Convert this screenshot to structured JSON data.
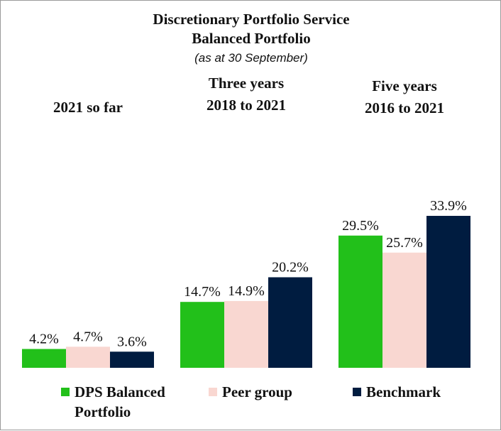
{
  "chart_data": {
    "type": "bar",
    "title": "Discretionary Portfolio Service",
    "subtitle": "Balanced Portfolio",
    "note": "(as at 30 September)",
    "groups": [
      {
        "label_line1": "2021 so far",
        "label_line2": ""
      },
      {
        "label_line1": "Three years",
        "label_line2": "2018 to 2021"
      },
      {
        "label_line1": "Five years",
        "label_line2": "2016 to 2021"
      }
    ],
    "series": [
      {
        "name_line1": "DPS Balanced",
        "name_line2": "Portfolio",
        "color": "#22c01a",
        "values": [
          4.2,
          14.7,
          29.5
        ],
        "labels": [
          "4.2%",
          "14.7%",
          "29.5%"
        ]
      },
      {
        "name_line1": "Peer group",
        "name_line2": "",
        "color": "#f9d7d1",
        "values": [
          4.7,
          14.9,
          25.7
        ],
        "labels": [
          "4.7%",
          "14.9%",
          "25.7%"
        ]
      },
      {
        "name_line1": "Benchmark",
        "name_line2": "",
        "color": "#001c40",
        "values": [
          3.6,
          20.2,
          33.9
        ],
        "labels": [
          "3.6%",
          "20.2%",
          "33.9%"
        ]
      }
    ],
    "ylim": [
      0,
      33.9
    ],
    "grid": false,
    "legend": "bottom"
  }
}
